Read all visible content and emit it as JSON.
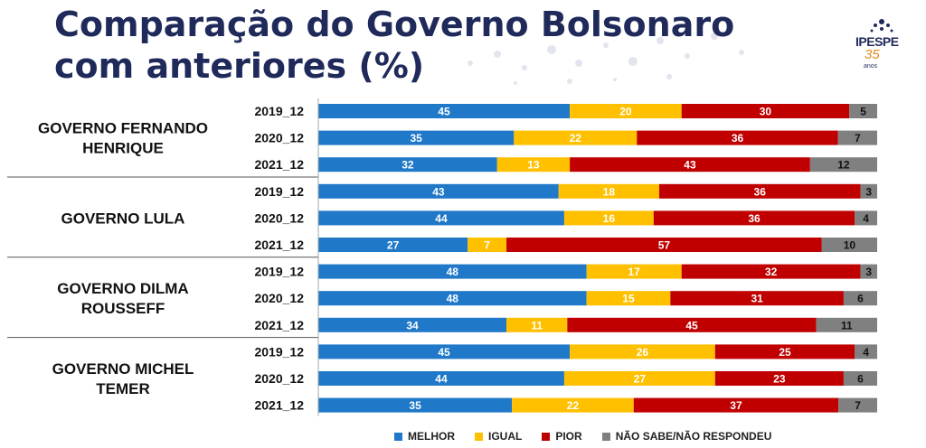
{
  "title_line1": "Comparação do Governo Bolsonaro",
  "title_line2": "com anteriores (%)",
  "logo": {
    "name": "IPESPE",
    "number": "35",
    "sub": "anos"
  },
  "chart_data": {
    "type": "bar",
    "orientation": "horizontal-stacked",
    "groups": [
      {
        "label": [
          "GOVERNO FERNANDO",
          "HENRIQUE"
        ],
        "rows": [
          {
            "year": "2019_12",
            "values": [
              45,
              20,
              30,
              5
            ]
          },
          {
            "year": "2020_12",
            "values": [
              35,
              22,
              36,
              7
            ]
          },
          {
            "year": "2021_12",
            "values": [
              32,
              13,
              43,
              12
            ]
          }
        ]
      },
      {
        "label": [
          "GOVERNO LULA"
        ],
        "rows": [
          {
            "year": "2019_12",
            "values": [
              43,
              18,
              36,
              3
            ]
          },
          {
            "year": "2020_12",
            "values": [
              44,
              16,
              36,
              4
            ]
          },
          {
            "year": "2021_12",
            "values": [
              27,
              7,
              57,
              10
            ]
          }
        ]
      },
      {
        "label": [
          "GOVERNO DILMA",
          "ROUSSEFF"
        ],
        "rows": [
          {
            "year": "2019_12",
            "values": [
              48,
              17,
              32,
              3
            ]
          },
          {
            "year": "2020_12",
            "values": [
              48,
              15,
              31,
              6
            ]
          },
          {
            "year": "2021_12",
            "values": [
              34,
              11,
              45,
              11
            ]
          }
        ]
      },
      {
        "label": [
          "GOVERNO MICHEL",
          "TEMER"
        ],
        "rows": [
          {
            "year": "2019_12",
            "values": [
              45,
              26,
              25,
              4
            ]
          },
          {
            "year": "2020_12",
            "values": [
              44,
              27,
              23,
              6
            ]
          },
          {
            "year": "2021_12",
            "values": [
              35,
              22,
              37,
              7
            ]
          }
        ]
      }
    ],
    "series": [
      {
        "name": "MELHOR",
        "color": "#1f78c8"
      },
      {
        "name": "IGUAL",
        "color": "#ffc000"
      },
      {
        "name": "PIOR",
        "color": "#c00000"
      },
      {
        "name": "NÃO SABE/NÃO RESPONDEU",
        "color": "#808080"
      }
    ]
  }
}
